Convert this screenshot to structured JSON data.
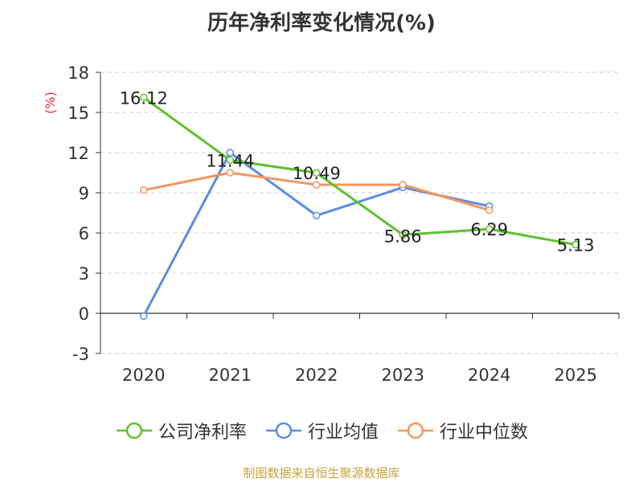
{
  "chart_data": {
    "type": "line",
    "title": "历年净利率变化情况(%)",
    "ylabel": "(%)",
    "categories": [
      "2020",
      "2021",
      "2022",
      "2023",
      "2024",
      "2025"
    ],
    "ylim": [
      -3,
      18
    ],
    "yticks": [
      -3,
      0,
      3,
      6,
      9,
      12,
      15,
      18
    ],
    "grid": true,
    "legend_position": "bottom",
    "series": [
      {
        "name": "公司净利率",
        "color": "#5cc22e",
        "values": [
          16.12,
          11.44,
          10.49,
          5.86,
          6.29,
          5.13
        ],
        "labels": [
          "16.12",
          "11.44",
          "10.49",
          "5.86",
          "6.29",
          "5.13"
        ]
      },
      {
        "name": "行业均值",
        "color": "#5b8ddf",
        "values": [
          -0.2,
          12.0,
          7.3,
          9.4,
          8.0,
          null
        ]
      },
      {
        "name": "行业中位数",
        "color": "#f39661",
        "values": [
          9.2,
          10.5,
          9.6,
          9.6,
          7.7,
          null
        ]
      }
    ],
    "source": "制图数据来自恒生聚源数据库"
  }
}
